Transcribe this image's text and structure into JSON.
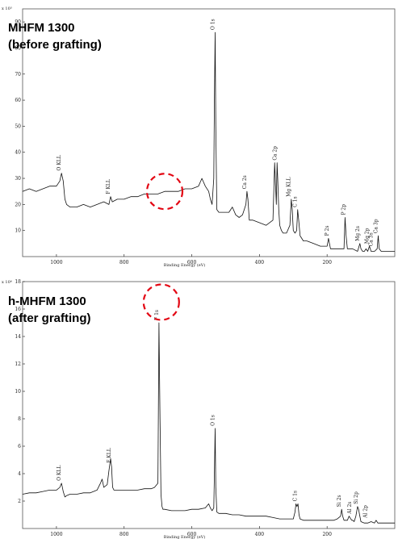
{
  "chart_data": [
    {
      "type": "line",
      "exponent_label": "x 10³",
      "title_lines": [
        "MHFM 1300",
        "(before grafting)"
      ],
      "xlabel": "Binding Energy (eV)",
      "ylabel": "",
      "xlim": [
        1100,
        0
      ],
      "ylim": [
        0,
        95
      ],
      "xticks": [
        1000,
        800,
        600,
        400,
        200
      ],
      "yticks": [
        10,
        20,
        30,
        40,
        50,
        60,
        70,
        80,
        90
      ],
      "grid": false,
      "series": [
        {
          "x": [
            1100,
            1080,
            1060,
            1040,
            1020,
            1000,
            990,
            985,
            980,
            975,
            970,
            960,
            940,
            920,
            900,
            880,
            860,
            845,
            840,
            835,
            820,
            800,
            780,
            760,
            740,
            720,
            700,
            680,
            660,
            640,
            620,
            600,
            580,
            570,
            560,
            550,
            545,
            540,
            535,
            533,
            531,
            529,
            526,
            520,
            510,
            490,
            480,
            470,
            460,
            450,
            440,
            437,
            434,
            430,
            420,
            400,
            380,
            360,
            355,
            350,
            348,
            346,
            343,
            340,
            335,
            330,
            320,
            310,
            306,
            303,
            300,
            295,
            290,
            287,
            284,
            280,
            270,
            260,
            240,
            220,
            200,
            196,
            193,
            190,
            175,
            160,
            150,
            147,
            144,
            140,
            125,
            110,
            103,
            100,
            95,
            90,
            85,
            80,
            75,
            70,
            65,
            60,
            52,
            49,
            46,
            40,
            30,
            20,
            10,
            0
          ],
          "y": [
            25,
            26,
            25,
            26,
            27,
            27,
            29,
            32,
            29,
            22,
            20,
            19,
            19,
            20,
            19,
            20,
            21,
            20,
            23,
            21,
            22,
            22,
            23,
            23,
            24,
            24,
            24,
            25,
            25,
            25,
            26,
            26,
            27,
            30,
            27,
            25,
            22,
            20,
            30,
            60,
            86,
            50,
            18,
            17,
            17,
            17,
            19,
            16,
            15,
            16,
            20,
            25,
            22,
            14,
            14,
            13,
            12,
            14,
            36,
            20,
            36,
            30,
            18,
            12,
            10,
            9,
            9,
            12,
            22,
            18,
            10,
            9,
            10,
            18,
            14,
            8,
            6,
            6,
            5,
            4,
            4,
            7,
            5,
            3,
            3,
            3,
            3,
            15,
            8,
            3,
            3,
            2,
            5,
            3,
            2,
            2,
            3,
            2,
            4,
            2,
            2,
            2,
            3,
            8,
            3,
            2,
            2,
            2,
            2,
            2
          ]
        }
      ],
      "peak_labels": [
        {
          "text": "O KLL",
          "x": 985,
          "y": 32
        },
        {
          "text": "F KLL",
          "x": 840,
          "y": 23
        },
        {
          "text": "O 1s",
          "x": 531,
          "y": 86
        },
        {
          "text": "Ca 2s",
          "x": 437,
          "y": 25
        },
        {
          "text": "Ca 2p",
          "x": 347,
          "y": 36
        },
        {
          "text": "Mg KLL",
          "x": 306,
          "y": 22
        },
        {
          "text": "C 1s",
          "x": 287,
          "y": 18
        },
        {
          "text": "P 2s",
          "x": 193,
          "y": 7
        },
        {
          "text": "P 2p",
          "x": 144,
          "y": 15
        },
        {
          "text": "Mg 2s",
          "x": 103,
          "y": 5
        },
        {
          "text": "Mg 2p",
          "x": 75,
          "y": 4
        },
        {
          "text": "Ca 3s",
          "x": 63,
          "y": 3
        },
        {
          "text": "Ca 3p",
          "x": 49,
          "y": 8
        }
      ],
      "highlight_circle": {
        "center_x": 680,
        "center_y": 25,
        "color": "#e30613"
      }
    },
    {
      "type": "line",
      "exponent_label": "x 10⁴",
      "title_lines": [
        "h-MHFM 1300",
        "(after grafting)"
      ],
      "xlabel": "Binding Energy (eV)",
      "ylabel": "",
      "xlim": [
        1100,
        0
      ],
      "ylim": [
        0,
        18
      ],
      "xticks": [
        1000,
        800,
        600,
        400,
        200
      ],
      "yticks": [
        2,
        4,
        6,
        8,
        10,
        12,
        14,
        16,
        18
      ],
      "grid": false,
      "series": [
        {
          "x": [
            1100,
            1080,
            1060,
            1040,
            1020,
            1000,
            990,
            985,
            980,
            975,
            970,
            960,
            940,
            920,
            900,
            880,
            870,
            865,
            860,
            850,
            845,
            840,
            837,
            834,
            830,
            820,
            800,
            780,
            760,
            740,
            720,
            710,
            700,
            697,
            694,
            691,
            688,
            685,
            680,
            660,
            640,
            620,
            600,
            580,
            560,
            550,
            545,
            540,
            535,
            533,
            531,
            529,
            526,
            520,
            500,
            480,
            460,
            440,
            420,
            400,
            380,
            360,
            340,
            320,
            300,
            295,
            292,
            289,
            286,
            283,
            280,
            270,
            250,
            230,
            210,
            200,
            180,
            170,
            160,
            157,
            154,
            150,
            140,
            135,
            130,
            127,
            124,
            120,
            115,
            110,
            107,
            104,
            100,
            90,
            80,
            70,
            60,
            55,
            50,
            45,
            40,
            30,
            20,
            10,
            0
          ],
          "y": [
            2.5,
            2.6,
            2.6,
            2.7,
            2.8,
            2.8,
            3.0,
            3.3,
            2.7,
            2.3,
            2.4,
            2.5,
            2.5,
            2.6,
            2.6,
            2.8,
            3.3,
            3.6,
            3.0,
            3.2,
            4.2,
            5.1,
            4.5,
            3.0,
            2.8,
            2.8,
            2.8,
            2.8,
            2.8,
            2.9,
            2.9,
            3.0,
            3.3,
            15.0,
            8.0,
            2.5,
            1.6,
            1.4,
            1.4,
            1.3,
            1.3,
            1.3,
            1.4,
            1.4,
            1.5,
            1.8,
            1.5,
            1.3,
            1.5,
            4.0,
            7.3,
            3.0,
            1.2,
            1.1,
            1.1,
            1.0,
            1.0,
            0.9,
            0.9,
            0.9,
            0.9,
            0.8,
            0.7,
            0.7,
            0.7,
            1.2,
            1.8,
            1.6,
            1.8,
            1.0,
            0.7,
            0.6,
            0.6,
            0.6,
            0.6,
            0.6,
            0.6,
            0.7,
            0.9,
            1.4,
            0.9,
            0.6,
            0.6,
            0.9,
            0.7,
            0.6,
            0.6,
            0.5,
            0.9,
            1.6,
            1.4,
            1.0,
            0.5,
            0.4,
            0.4,
            0.5,
            0.4,
            0.6,
            0.4,
            0.4,
            0.4,
            0.4,
            0.4,
            0.4,
            0.4
          ]
        }
      ],
      "peak_labels": [
        {
          "text": "O KLL",
          "x": 985,
          "y": 3.3
        },
        {
          "text": "F KLL",
          "x": 838,
          "y": 4.6
        },
        {
          "text": "F 1s",
          "x": 697,
          "y": 15.0
        },
        {
          "text": "O 1s",
          "x": 531,
          "y": 7.3
        },
        {
          "text": "C 1s",
          "x": 288,
          "y": 1.8
        },
        {
          "text": "Si 2s",
          "x": 157,
          "y": 1.4
        },
        {
          "text": "Al 2s",
          "x": 127,
          "y": 0.9
        },
        {
          "text": "Si 2p",
          "x": 107,
          "y": 1.6
        },
        {
          "text": "Al 2p",
          "x": 80,
          "y": 0.6
        }
      ],
      "highlight_circle": {
        "center_x": 690,
        "center_y": 16.5,
        "color": "#e30613"
      }
    }
  ]
}
